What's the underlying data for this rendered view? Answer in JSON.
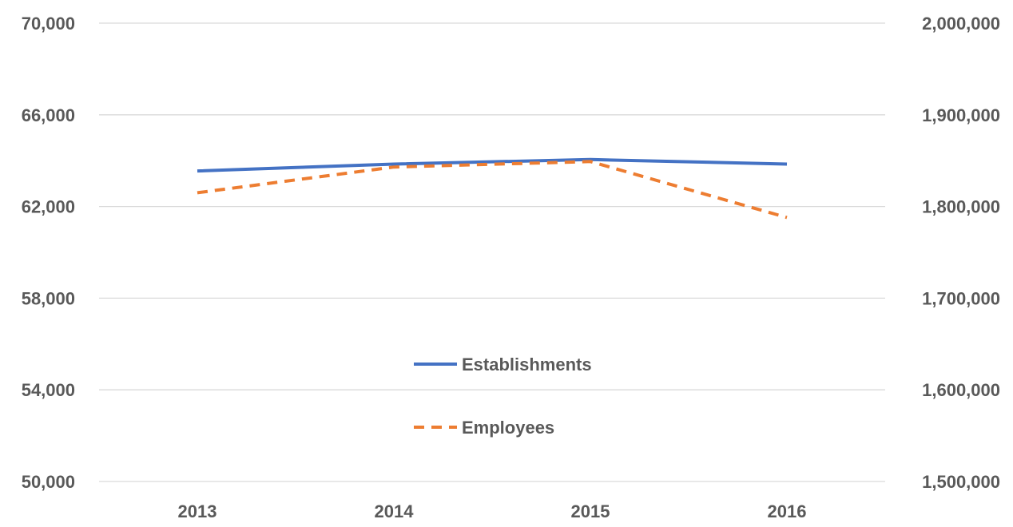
{
  "chart_data": {
    "type": "line",
    "categories": [
      "2013",
      "2014",
      "2015",
      "2016"
    ],
    "left_axis": {
      "ylim": [
        50000,
        70000
      ],
      "ticks": [
        50000,
        54000,
        58000,
        62000,
        66000,
        70000
      ],
      "tick_labels": [
        "50,000",
        "54,000",
        "58,000",
        "62,000",
        "66,000",
        "70,000"
      ]
    },
    "right_axis": {
      "ylim": [
        1500000,
        2000000
      ],
      "ticks": [
        1500000,
        1600000,
        1700000,
        1800000,
        1900000,
        2000000
      ],
      "tick_labels": [
        "1,500,000",
        "1,600,000",
        "1,700,000",
        "1,800,000",
        "1,900,000",
        "2,000,000"
      ]
    },
    "series": [
      {
        "name": "Establishments",
        "axis": "left",
        "values": [
          63550,
          63850,
          64050,
          63850
        ],
        "color": "#4472c4",
        "style": "solid"
      },
      {
        "name": "Employees",
        "axis": "right",
        "values": [
          1815000,
          1843000,
          1849000,
          1788000
        ],
        "color": "#ed7d31",
        "style": "dashed"
      }
    ],
    "grid": true,
    "legend_position": "center"
  }
}
